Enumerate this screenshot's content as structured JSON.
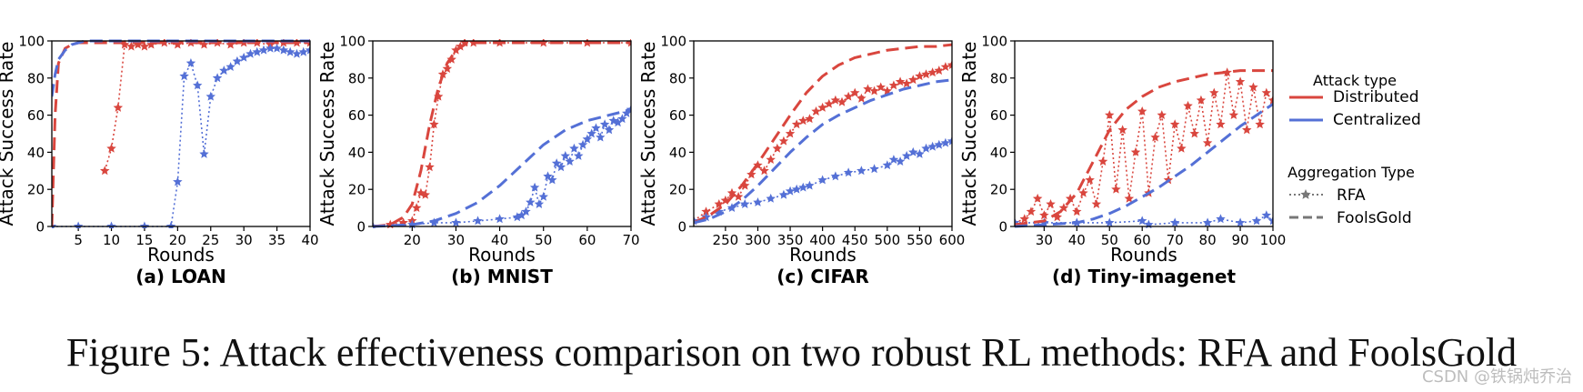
{
  "figure": {
    "caption": "Figure 5: Attack effectiveness comparison on two robust RL methods: RFA and FoolsGold",
    "watermark": "CSDN @铁锅炖乔治"
  },
  "colors": {
    "distributed": "#d9463e",
    "centralized": "#5470d6"
  },
  "legend": {
    "attack_title": "Attack type",
    "attack_items": [
      "Distributed",
      "Centralized"
    ],
    "agg_title": "Aggregation Type",
    "agg_items": [
      "RFA",
      "FoolsGold"
    ]
  },
  "chart_data": [
    {
      "type": "line",
      "title": "(a) LOAN",
      "xlabel": "Rounds",
      "ylabel": "Attack Success Rate",
      "xlim": [
        1,
        40
      ],
      "ylim": [
        0,
        100
      ],
      "xticks": [
        5,
        10,
        15,
        20,
        25,
        30,
        35,
        40
      ],
      "yticks": [
        0,
        20,
        40,
        60,
        80,
        100
      ],
      "series": [
        {
          "name": "Distributed RFA",
          "style": "dotted",
          "marker": "star",
          "x": [
            9,
            10,
            11,
            12,
            13,
            14,
            15,
            16,
            18,
            20,
            22,
            24,
            26,
            28,
            30,
            32,
            34,
            36,
            38,
            40
          ],
          "y": [
            30,
            42,
            64,
            98,
            97,
            98,
            97,
            98,
            99,
            98,
            99,
            98,
            99,
            98,
            99,
            99,
            98,
            99,
            99,
            99
          ]
        },
        {
          "name": "Centralized RFA",
          "style": "dotted",
          "marker": "star",
          "x": [
            1,
            5,
            10,
            15,
            19,
            20,
            21,
            22,
            23,
            24,
            25,
            26,
            27,
            28,
            29,
            30,
            31,
            32,
            33,
            34,
            35,
            36,
            37,
            38,
            39,
            40
          ],
          "y": [
            0,
            0,
            0,
            0,
            0,
            24,
            81,
            88,
            76,
            39,
            70,
            80,
            84,
            86,
            89,
            91,
            93,
            94,
            95,
            96,
            96,
            95,
            94,
            93,
            94,
            95
          ]
        },
        {
          "name": "Distributed FoolsGold",
          "style": "dashed",
          "x": [
            1,
            1.5,
            2,
            3,
            4,
            5,
            6,
            8,
            10,
            20,
            30,
            40
          ],
          "y": [
            0,
            60,
            88,
            96,
            98,
            99,
            99,
            99,
            99,
            99,
            99,
            99
          ]
        },
        {
          "name": "Centralized FoolsGold",
          "style": "dashed",
          "x": [
            1,
            1.5,
            2,
            3,
            4,
            5,
            6,
            8,
            10,
            20,
            30,
            40
          ],
          "y": [
            70,
            82,
            90,
            95,
            98,
            99,
            100,
            100,
            100,
            100,
            100,
            100
          ]
        }
      ]
    },
    {
      "type": "line",
      "title": "(b) MNIST",
      "xlabel": "Rounds",
      "ylabel": "Attack Success Rate",
      "xlim": [
        11,
        70
      ],
      "ylim": [
        0,
        100
      ],
      "xticks": [
        20,
        30,
        40,
        50,
        60,
        70
      ],
      "yticks": [
        0,
        20,
        40,
        60,
        80,
        100
      ],
      "series": [
        {
          "name": "Distributed RFA",
          "style": "dotted",
          "marker": "star",
          "x": [
            11,
            15,
            18,
            20,
            21,
            22,
            23,
            24,
            25,
            26,
            27,
            28,
            29,
            30,
            31,
            32,
            34,
            40,
            50,
            60,
            70
          ],
          "y": [
            0,
            1,
            2,
            3,
            10,
            18,
            17,
            32,
            55,
            70,
            82,
            85,
            90,
            95,
            97,
            99,
            99,
            99,
            99,
            99,
            99
          ]
        },
        {
          "name": "Centralized RFA",
          "style": "dotted",
          "marker": "star",
          "x": [
            11,
            20,
            25,
            30,
            35,
            40,
            44,
            45,
            46,
            47,
            48,
            49,
            50,
            51,
            52,
            53,
            54,
            55,
            56,
            57,
            58,
            59,
            60,
            61,
            62,
            63,
            64,
            65,
            66,
            67,
            68,
            69,
            70
          ],
          "y": [
            0,
            1,
            2,
            2,
            3,
            4,
            5,
            6,
            8,
            13,
            21,
            12,
            16,
            27,
            25,
            34,
            32,
            38,
            35,
            42,
            38,
            44,
            47,
            50,
            53,
            48,
            55,
            52,
            57,
            56,
            58,
            61,
            63
          ]
        },
        {
          "name": "Distributed FoolsGold",
          "style": "dashed",
          "x": [
            11,
            15,
            18,
            20,
            22,
            24,
            26,
            28,
            30,
            32,
            34,
            40,
            50,
            60,
            70
          ],
          "y": [
            0,
            1,
            5,
            12,
            30,
            55,
            75,
            88,
            95,
            98,
            99,
            99,
            99,
            99,
            99
          ]
        },
        {
          "name": "Centralized FoolsGold",
          "style": "dashed",
          "x": [
            11,
            20,
            25,
            30,
            35,
            40,
            45,
            50,
            55,
            60,
            65,
            70
          ],
          "y": [
            0,
            1,
            3,
            7,
            13,
            22,
            33,
            44,
            52,
            57,
            60,
            63
          ]
        }
      ]
    },
    {
      "type": "line",
      "title": "(c) CIFAR",
      "xlabel": "Rounds",
      "ylabel": "Attack Success Rate",
      "xlim": [
        201,
        600
      ],
      "ylim": [
        0,
        100
      ],
      "xticks": [
        250,
        300,
        350,
        400,
        450,
        500,
        550,
        600
      ],
      "yticks": [
        0,
        20,
        40,
        60,
        80,
        100
      ],
      "series": [
        {
          "name": "Distributed RFA",
          "style": "dotted",
          "marker": "star",
          "x": [
            201,
            220,
            240,
            250,
            260,
            270,
            280,
            290,
            300,
            310,
            320,
            330,
            340,
            350,
            360,
            370,
            380,
            390,
            400,
            410,
            420,
            430,
            440,
            450,
            460,
            470,
            480,
            490,
            500,
            510,
            520,
            530,
            540,
            550,
            560,
            570,
            580,
            590,
            600
          ],
          "y": [
            3,
            8,
            12,
            14,
            18,
            16,
            22,
            28,
            33,
            30,
            36,
            42,
            46,
            50,
            55,
            57,
            58,
            62,
            64,
            66,
            68,
            67,
            70,
            72,
            69,
            74,
            73,
            75,
            73,
            76,
            78,
            77,
            79,
            81,
            82,
            83,
            84,
            86,
            87
          ]
        },
        {
          "name": "Centralized RFA",
          "style": "dotted",
          "marker": "star",
          "x": [
            201,
            220,
            240,
            260,
            280,
            300,
            320,
            340,
            350,
            360,
            370,
            380,
            400,
            420,
            440,
            460,
            480,
            500,
            510,
            520,
            530,
            540,
            550,
            560,
            570,
            580,
            590,
            600
          ],
          "y": [
            3,
            5,
            8,
            10,
            12,
            13,
            15,
            17,
            19,
            20,
            21,
            22,
            25,
            27,
            29,
            30,
            31,
            33,
            36,
            35,
            38,
            40,
            39,
            42,
            43,
            44,
            45,
            46
          ]
        },
        {
          "name": "Distributed FoolsGold",
          "style": "dashed",
          "x": [
            201,
            225,
            250,
            275,
            300,
            325,
            350,
            375,
            400,
            425,
            450,
            475,
            500,
            525,
            550,
            575,
            600
          ],
          "y": [
            2,
            6,
            12,
            22,
            34,
            47,
            60,
            72,
            81,
            87,
            91,
            93,
            95,
            96,
            97,
            97,
            98
          ]
        },
        {
          "name": "Centralized FoolsGold",
          "style": "dashed",
          "x": [
            201,
            225,
            250,
            275,
            300,
            325,
            350,
            375,
            400,
            425,
            450,
            475,
            500,
            525,
            550,
            575,
            600
          ],
          "y": [
            2,
            4,
            8,
            14,
            22,
            31,
            40,
            48,
            55,
            60,
            64,
            68,
            71,
            74,
            76,
            78,
            79
          ]
        }
      ]
    },
    {
      "type": "line",
      "title": "(d) Tiny-imagenet",
      "xlabel": "Rounds",
      "ylabel": "Attack Success Rate",
      "xlim": [
        21,
        100
      ],
      "ylim": [
        0,
        100
      ],
      "xticks": [
        30,
        40,
        50,
        60,
        70,
        80,
        90,
        100
      ],
      "yticks": [
        0,
        20,
        40,
        60,
        80,
        100
      ],
      "series": [
        {
          "name": "Distributed RFA",
          "style": "dotted",
          "marker": "star",
          "x": [
            21,
            24,
            26,
            28,
            30,
            32,
            34,
            36,
            38,
            40,
            42,
            44,
            46,
            48,
            50,
            52,
            54,
            56,
            58,
            60,
            62,
            64,
            66,
            68,
            70,
            72,
            74,
            76,
            78,
            80,
            82,
            84,
            86,
            88,
            90,
            92,
            94,
            96,
            98,
            100
          ],
          "y": [
            2,
            4,
            8,
            15,
            6,
            12,
            5,
            10,
            15,
            8,
            18,
            25,
            12,
            35,
            60,
            20,
            52,
            15,
            40,
            62,
            18,
            48,
            60,
            25,
            55,
            42,
            65,
            50,
            68,
            45,
            72,
            55,
            83,
            60,
            78,
            52,
            75,
            55,
            72,
            68
          ]
        },
        {
          "name": "Centralized RFA",
          "style": "dotted",
          "marker": "star",
          "x": [
            21,
            30,
            40,
            50,
            60,
            62,
            70,
            80,
            84,
            90,
            95,
            98,
            100
          ],
          "y": [
            2,
            2,
            2,
            2,
            3,
            1,
            2,
            2,
            4,
            2,
            3,
            6,
            3
          ]
        },
        {
          "name": "Distributed FoolsGold",
          "style": "dashed",
          "x": [
            21,
            30,
            35,
            40,
            45,
            50,
            55,
            60,
            65,
            70,
            75,
            80,
            85,
            90,
            95,
            100
          ],
          "y": [
            1,
            3,
            8,
            18,
            35,
            52,
            63,
            70,
            75,
            78,
            80,
            82,
            83,
            84,
            84,
            84
          ]
        },
        {
          "name": "Centralized FoolsGold",
          "style": "dashed",
          "x": [
            21,
            30,
            40,
            45,
            50,
            55,
            60,
            65,
            70,
            75,
            80,
            85,
            90,
            95,
            100
          ],
          "y": [
            0,
            1,
            2,
            4,
            7,
            11,
            16,
            21,
            27,
            33,
            40,
            47,
            54,
            60,
            66
          ]
        }
      ]
    }
  ]
}
